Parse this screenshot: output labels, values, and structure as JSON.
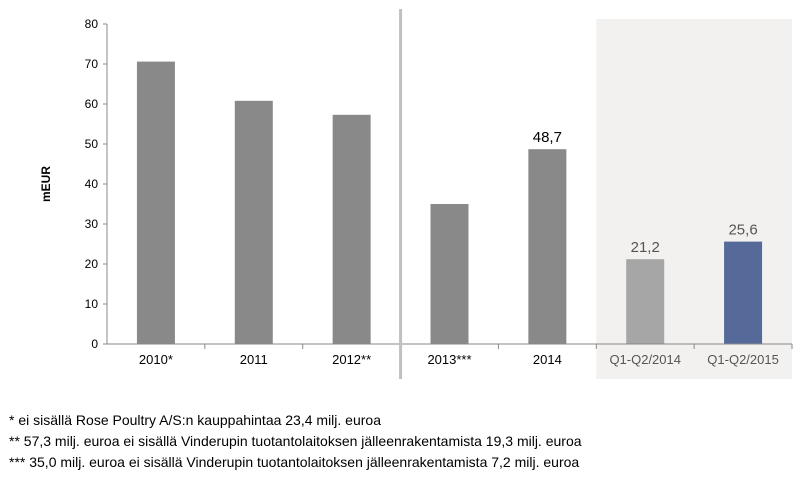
{
  "chart_data": {
    "type": "bar",
    "title": "",
    "xlabel": "",
    "ylabel": "mEUR",
    "ylim": [
      0,
      80
    ],
    "yticks": [
      "0",
      "10",
      "20",
      "30",
      "40",
      "50",
      "60",
      "70",
      "80"
    ],
    "categories": [
      "2010*",
      "2011",
      "2012**",
      "2013***",
      "2014",
      "Q1-Q2/2014",
      "Q1-Q2/2015"
    ],
    "values": [
      70.6,
      60.8,
      57.3,
      35.0,
      48.7,
      21.2,
      25.6
    ],
    "data_labels": [
      "",
      "",
      "",
      "",
      "48,7",
      "21,2",
      "25,6"
    ],
    "bar_colors": [
      "#898989",
      "#898989",
      "#898989",
      "#898989",
      "#898989",
      "#a6a6a6",
      "#566a9a"
    ],
    "shaded_categories": [
      "Q1-Q2/2014",
      "Q1-Q2/2015"
    ],
    "shaded_color": "#f2f1ef",
    "divider_after_category": "2012**",
    "grid": false,
    "legend": "none"
  },
  "footnotes": [
    "* ei sisällä Rose Poultry A/S:n kauppahintaa 23,4 milj. euroa",
    "** 57,3 milj. euroa ei sisällä Vinderupin tuotantolaitoksen jälleenrakentamista 19,3 milj. euroa",
    "*** 35,0 milj. euroa ei sisällä Vinderupin tuotantolaitoksen jälleenrakentamista 7,2 milj. euroa"
  ]
}
